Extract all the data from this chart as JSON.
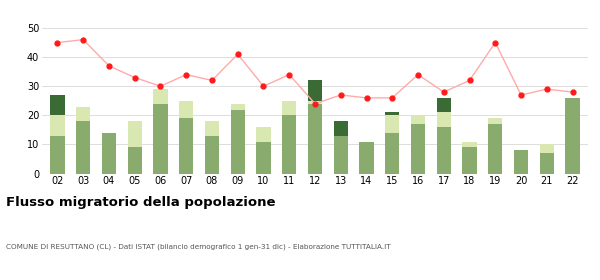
{
  "years": [
    "02",
    "03",
    "04",
    "05",
    "06",
    "07",
    "08",
    "09",
    "10",
    "11",
    "12",
    "13",
    "14",
    "15",
    "16",
    "17",
    "18",
    "19",
    "20",
    "21",
    "22"
  ],
  "iscritti_altri_comuni": [
    13,
    18,
    14,
    9,
    24,
    19,
    13,
    22,
    11,
    20,
    24,
    13,
    11,
    14,
    17,
    16,
    9,
    17,
    8,
    7,
    26
  ],
  "iscritti_estero": [
    7,
    5,
    0,
    9,
    5,
    6,
    5,
    2,
    5,
    5,
    1,
    0,
    0,
    6,
    3,
    5,
    2,
    2,
    0,
    3,
    0
  ],
  "iscritti_altri": [
    7,
    0,
    0,
    0,
    0,
    0,
    0,
    0,
    0,
    0,
    7,
    5,
    0,
    1,
    0,
    5,
    0,
    0,
    0,
    0,
    0
  ],
  "cancellati": [
    45,
    46,
    37,
    33,
    30,
    34,
    32,
    41,
    30,
    34,
    24,
    27,
    26,
    26,
    34,
    28,
    32,
    45,
    27,
    29,
    28
  ],
  "color_altri_comuni": "#8aab6e",
  "color_estero": "#d8e8b0",
  "color_altri": "#3a6b35",
  "color_cancellati": "#ff1a1a",
  "color_cancellati_line": "#ffaaaa",
  "ylim": [
    0,
    50
  ],
  "yticks": [
    0,
    10,
    20,
    30,
    40,
    50
  ],
  "title": "Flusso migratorio della popolazione",
  "subtitle": "COMUNE DI RESUTTANO (CL) - Dati ISTAT (bilancio demografico 1 gen-31 dic) - Elaborazione TUTTITALIA.IT",
  "bg_color": "#ffffff"
}
